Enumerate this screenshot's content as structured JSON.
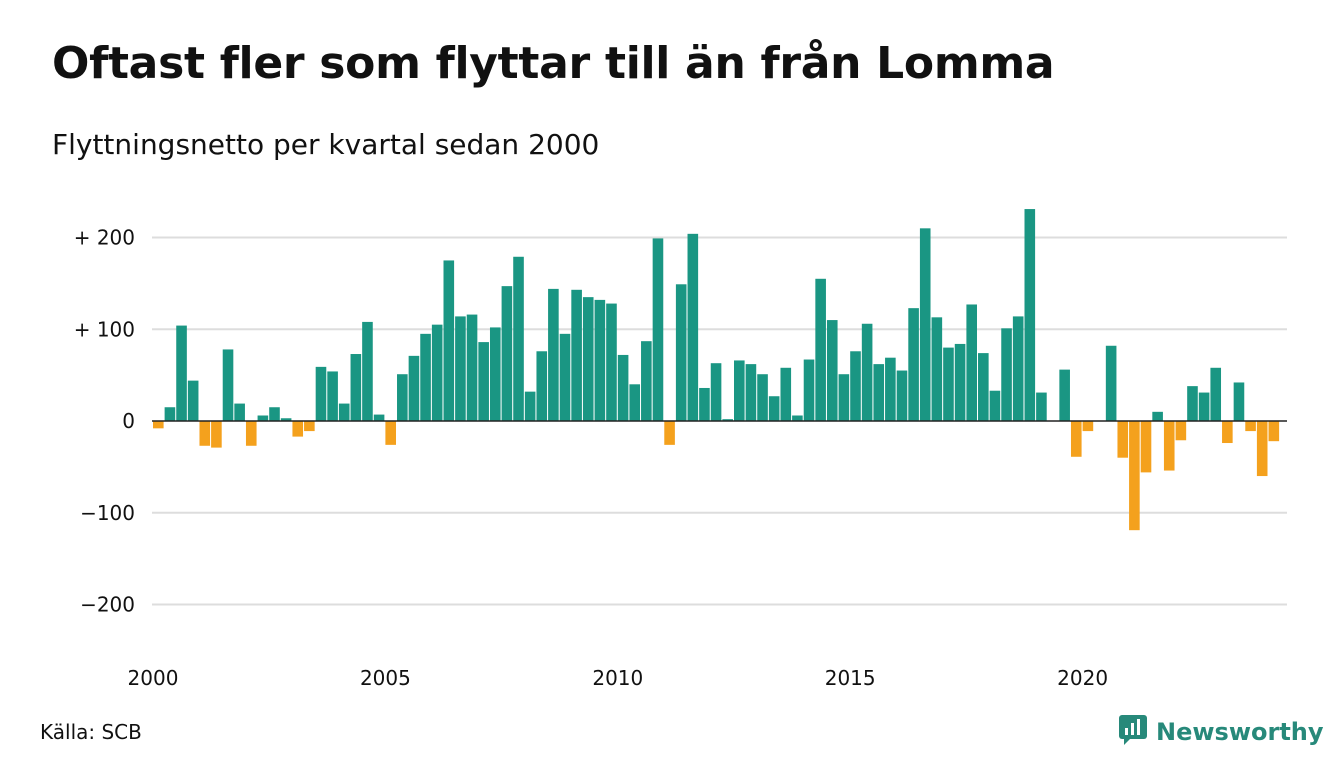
{
  "chart_data": {
    "type": "bar",
    "title": "Oftast fler som flyttar till än från Lomma",
    "subtitle": "Flyttningsnetto per kvartal sedan 2000",
    "xlabel": "",
    "ylabel": "",
    "ylim": [
      -250,
      235
    ],
    "grid": true,
    "legend": "none",
    "colors": {
      "positive": "#1a9683",
      "negative": "#f4a11d",
      "grid": "#dddddd",
      "zero_line": "#222222"
    },
    "y_ticks": [
      {
        "value": 200,
        "label": "+ 200"
      },
      {
        "value": 100,
        "label": "+ 100"
      },
      {
        "value": 0,
        "label": "0"
      },
      {
        "value": -100,
        "label": "−100"
      },
      {
        "value": -200,
        "label": "−200"
      }
    ],
    "x_ticks": [
      {
        "value": 2000,
        "label": "2000"
      },
      {
        "value": 2005,
        "label": "2005"
      },
      {
        "value": 2010,
        "label": "2010"
      },
      {
        "value": 2015,
        "label": "2015"
      },
      {
        "value": 2020,
        "label": "2020"
      }
    ],
    "start_year": 2000,
    "values": [
      -8,
      15,
      104,
      44,
      -27,
      -29,
      78,
      19,
      -27,
      6,
      15,
      3,
      -17,
      -11,
      59,
      54,
      19,
      73,
      108,
      7,
      -26,
      51,
      71,
      95,
      105,
      175,
      114,
      116,
      86,
      102,
      147,
      179,
      32,
      76,
      144,
      95,
      143,
      135,
      132,
      128,
      72,
      40,
      87,
      199,
      -26,
      149,
      204,
      36,
      63,
      2,
      66,
      62,
      51,
      27,
      58,
      6,
      67,
      155,
      110,
      51,
      76,
      106,
      62,
      69,
      55,
      123,
      210,
      113,
      80,
      84,
      127,
      74,
      33,
      101,
      114,
      231,
      31,
      0,
      56,
      -39,
      -11,
      0,
      82,
      -40,
      -119,
      -56,
      10,
      -54,
      -21,
      38,
      31,
      58,
      -24,
      42,
      -11,
      -60,
      -22
    ]
  },
  "footer": {
    "source": "Källa: SCB",
    "brand": "Newsworthy",
    "brand_icon": "newsworthy-logo-icon"
  }
}
